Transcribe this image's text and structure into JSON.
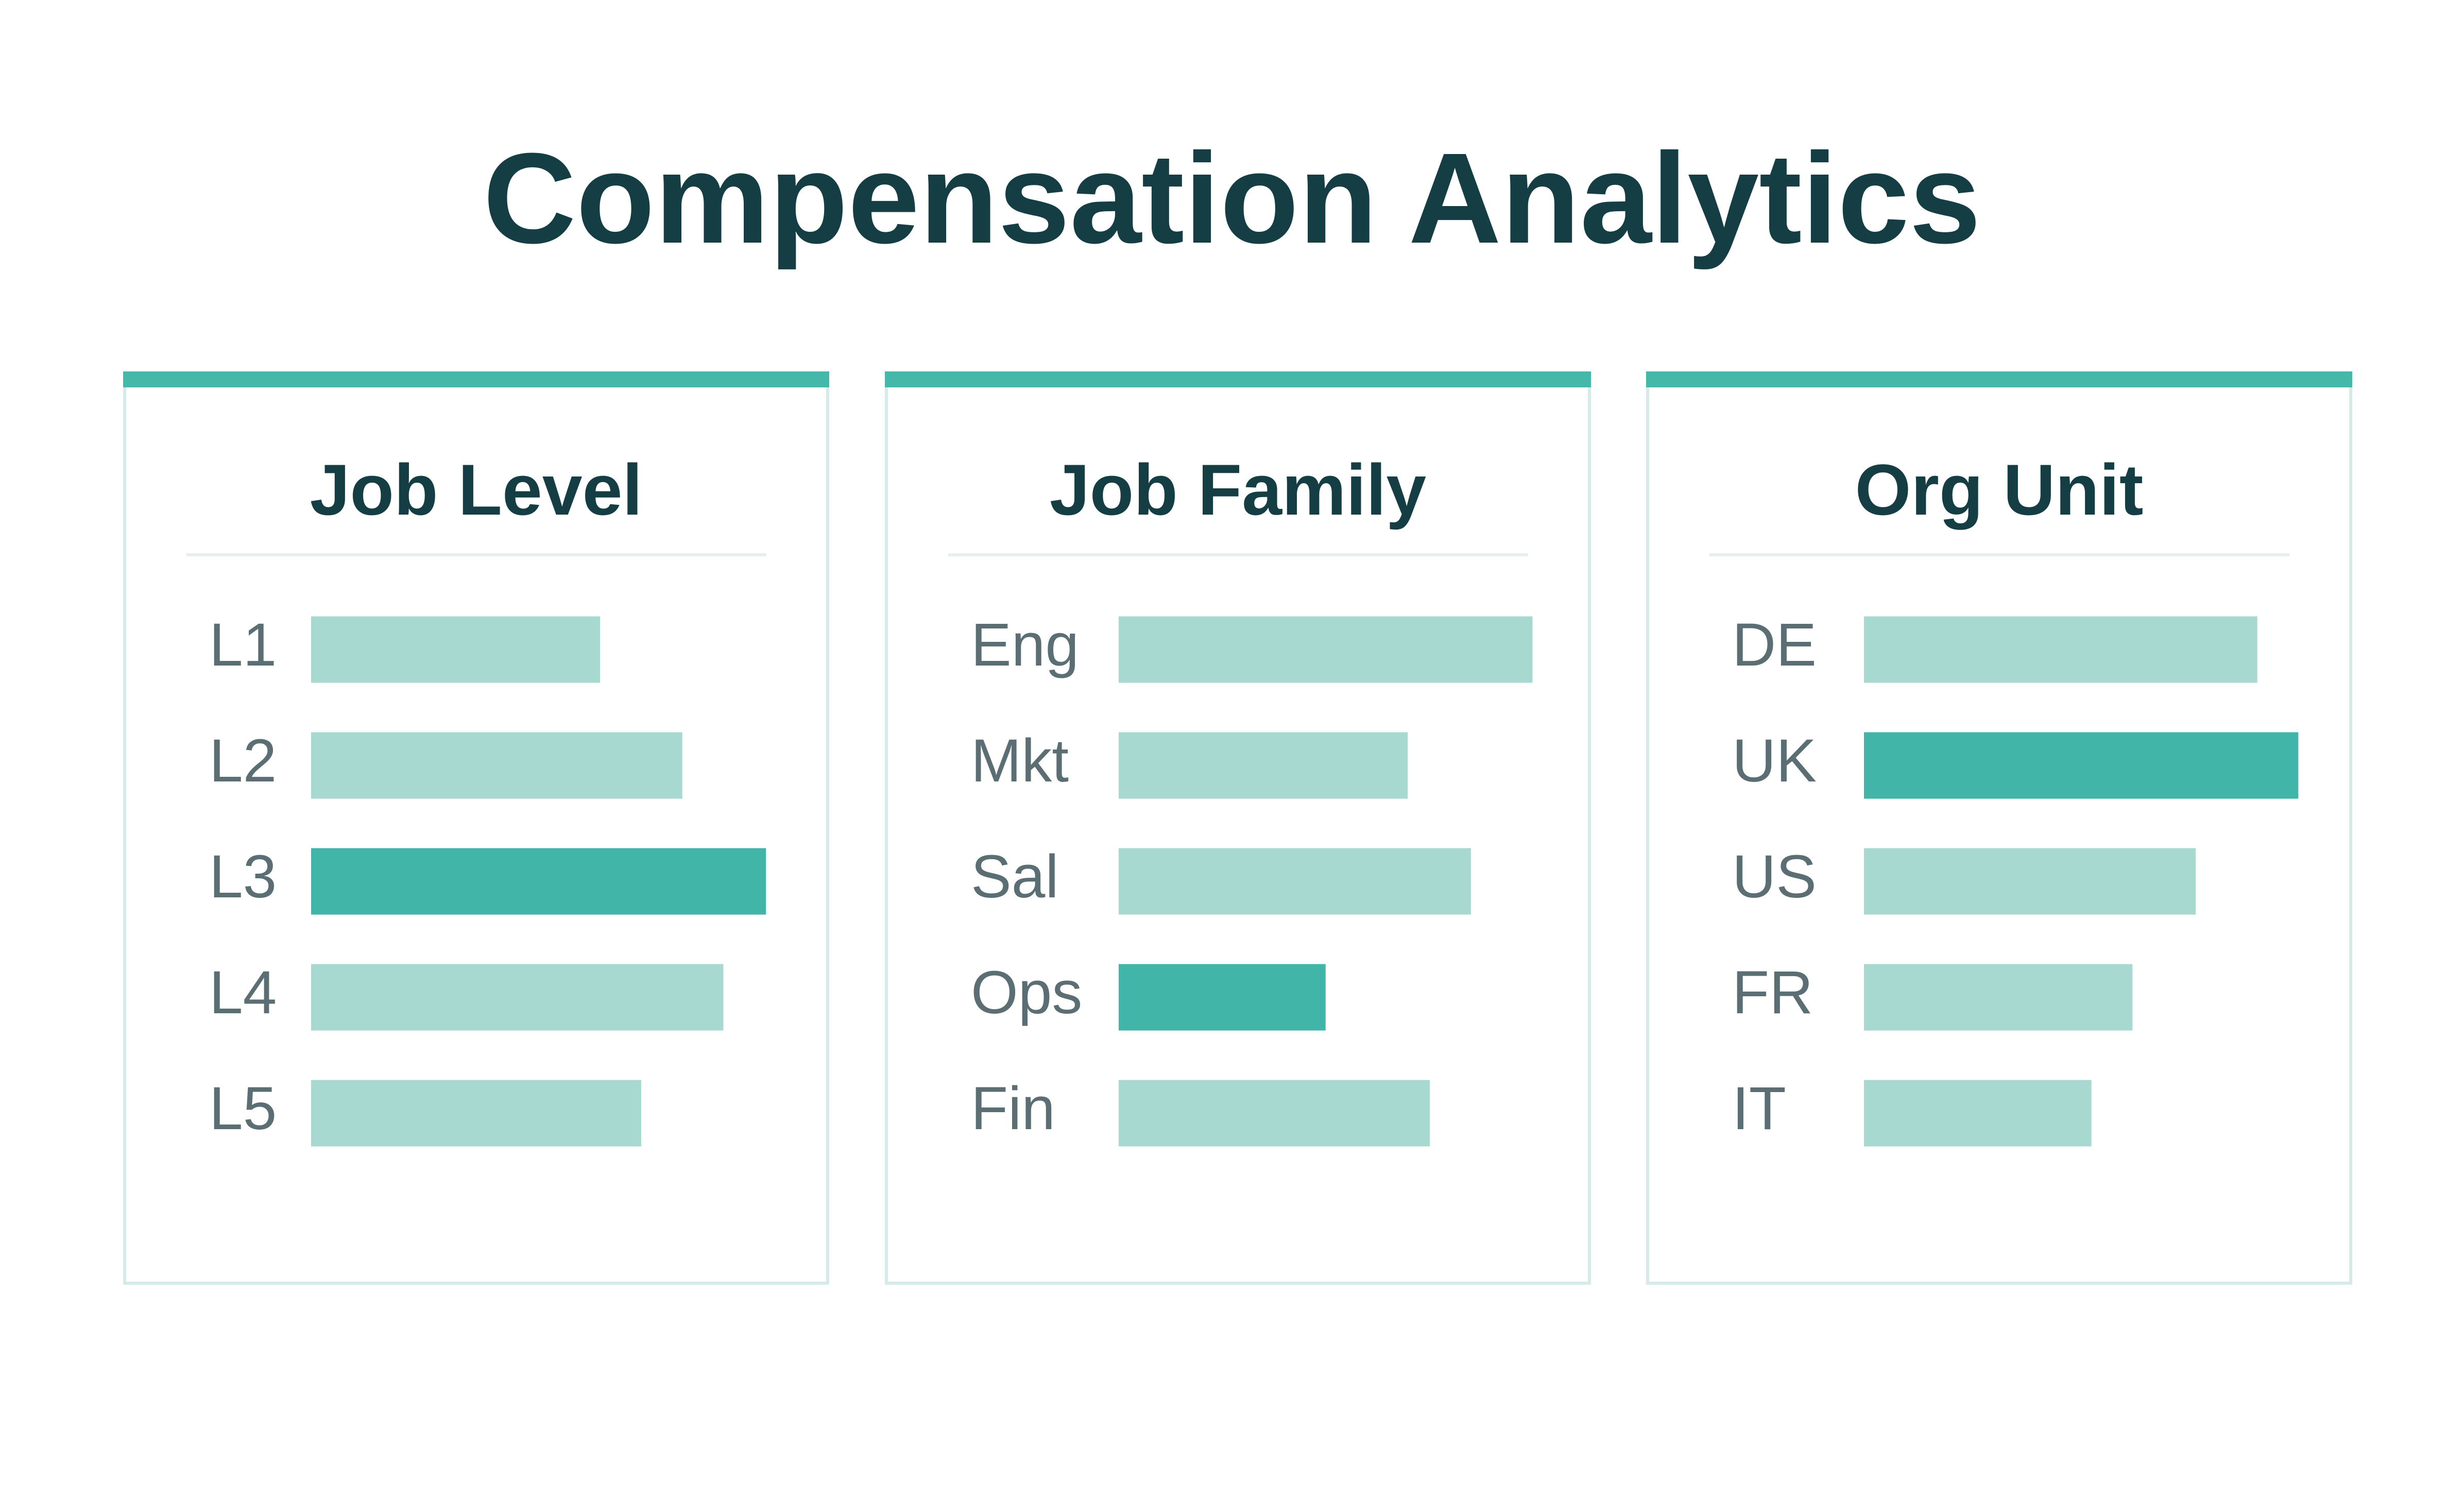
{
  "title": "Compensation Analytics",
  "chart_data": [
    {
      "type": "bar",
      "orientation": "horizontal",
      "title": "Job Level",
      "categories": [
        "L1",
        "L2",
        "L3",
        "L4",
        "L5"
      ],
      "values": [
        183,
        235,
        288,
        261,
        209
      ],
      "colors": [
        "#a8d9d0",
        "#a8d9d0",
        "#40b5a8",
        "#a8d9d0",
        "#a8d9d0"
      ],
      "xlim": [
        0,
        300
      ]
    },
    {
      "type": "bar",
      "orientation": "horizontal",
      "title": "Job Family",
      "categories": [
        "Eng",
        "Mkt",
        "Sal",
        "Ops",
        "Fin"
      ],
      "values": [
        262,
        183,
        223,
        131,
        197
      ],
      "colors": [
        "#a8d9d0",
        "#a8d9d0",
        "#a8d9d0",
        "#40b5a8",
        "#a8d9d0"
      ],
      "xlim": [
        0,
        300
      ]
    },
    {
      "type": "bar",
      "orientation": "horizontal",
      "title": "Org Unit",
      "categories": [
        "DE",
        "UK",
        "US",
        "FR",
        "IT"
      ],
      "values": [
        249,
        275,
        210,
        170,
        144
      ],
      "colors": [
        "#a8d9d0",
        "#40b5a8",
        "#a8d9d0",
        "#a8d9d0",
        "#a8d9d0"
      ],
      "xlim": [
        0,
        300
      ]
    }
  ]
}
